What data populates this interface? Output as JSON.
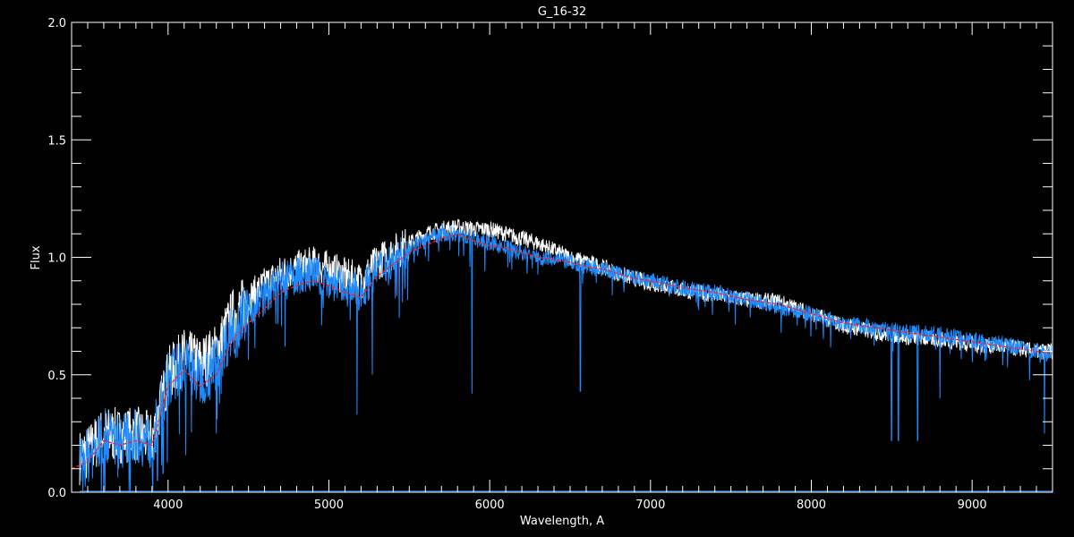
{
  "chart_data": {
    "type": "line",
    "title": "G_16-32",
    "xlabel": "Wavelength, A",
    "ylabel": "Flux",
    "xlim": [
      3400,
      9500
    ],
    "ylim": [
      0.0,
      2.0
    ],
    "xticks": [
      4000,
      5000,
      6000,
      7000,
      8000,
      9000
    ],
    "xtick_labels": [
      "4000",
      "5000",
      "6000",
      "7000",
      "8000",
      "9000"
    ],
    "yticks": [
      0.0,
      0.5,
      1.0,
      1.5,
      2.0
    ],
    "ytick_labels": [
      "0.0",
      "0.5",
      "1.0",
      "1.5",
      "2.0"
    ],
    "grid": false,
    "background": "#000000",
    "series": [
      {
        "color": "#ffffff",
        "x": [
          3450,
          3500,
          3600,
          3700,
          3800,
          3900,
          4000,
          4100,
          4200,
          4300,
          4400,
          4500,
          4600,
          4700,
          4800,
          4900,
          5000,
          5100,
          5200,
          5300,
          5400,
          5500,
          5600,
          5700,
          5800,
          5900,
          6000,
          6100,
          6200,
          6300,
          6400,
          6500,
          6600,
          6700,
          6800,
          6900,
          7000,
          7200,
          7400,
          7600,
          7800,
          8000,
          8200,
          8400,
          8600,
          8800,
          9000,
          9200,
          9400,
          9500
        ],
        "y": [
          0.15,
          0.17,
          0.25,
          0.24,
          0.25,
          0.22,
          0.5,
          0.58,
          0.55,
          0.6,
          0.75,
          0.82,
          0.88,
          0.93,
          0.95,
          0.97,
          0.95,
          0.92,
          0.9,
          0.98,
          1.02,
          1.06,
          1.1,
          1.12,
          1.13,
          1.12,
          1.12,
          1.1,
          1.08,
          1.06,
          1.03,
          1.0,
          0.98,
          0.96,
          0.93,
          0.91,
          0.89,
          0.86,
          0.84,
          0.82,
          0.81,
          0.76,
          0.71,
          0.68,
          0.66,
          0.65,
          0.63,
          0.62,
          0.6,
          0.6
        ]
      },
      {
        "color": "#1e8cff",
        "x": [
          3450,
          3500,
          3600,
          3700,
          3800,
          3900,
          4000,
          4100,
          4200,
          4300,
          4400,
          4500,
          4600,
          4700,
          4800,
          4900,
          5000,
          5100,
          5200,
          5300,
          5400,
          5500,
          5600,
          5700,
          5800,
          5900,
          6000,
          6100,
          6200,
          6300,
          6400,
          6500,
          6600,
          6700,
          6800,
          6900,
          7000,
          7200,
          7400,
          7600,
          7800,
          8000,
          8200,
          8400,
          8600,
          8800,
          9000,
          9200,
          9400,
          9500
        ],
        "y": [
          0.13,
          0.15,
          0.24,
          0.22,
          0.24,
          0.21,
          0.48,
          0.55,
          0.48,
          0.55,
          0.7,
          0.78,
          0.83,
          0.9,
          0.92,
          0.93,
          0.9,
          0.87,
          0.85,
          0.95,
          0.99,
          1.04,
          1.07,
          1.1,
          1.1,
          1.08,
          1.06,
          1.04,
          1.02,
          1.0,
          0.99,
          0.98,
          0.96,
          0.95,
          0.93,
          0.91,
          0.9,
          0.87,
          0.85,
          0.82,
          0.79,
          0.76,
          0.72,
          0.7,
          0.68,
          0.67,
          0.65,
          0.63,
          0.6,
          0.59
        ],
        "absorption_lines": [
          [
            3933,
            0.05
          ],
          [
            3968,
            0.08
          ],
          [
            4300,
            0.25
          ],
          [
            5175,
            0.33
          ],
          [
            5270,
            0.5
          ],
          [
            5890,
            0.42
          ],
          [
            6563,
            0.43
          ],
          [
            8498,
            0.22
          ],
          [
            8542,
            0.22
          ],
          [
            8662,
            0.22
          ],
          [
            8800,
            0.4
          ],
          [
            9450,
            0.25
          ]
        ]
      },
      {
        "color": "#1e8cff",
        "x": [
          3450,
          9500
        ],
        "y": [
          0.005,
          0.005
        ]
      },
      {
        "color": "#ff2020",
        "style": "dashed",
        "x": [
          3400,
          3500,
          3600,
          3700,
          3800,
          3900,
          4000,
          4100,
          4200,
          4300,
          4400,
          4500,
          4600,
          4700,
          4800,
          4900,
          5000,
          5100,
          5200,
          5300,
          5400,
          5500,
          5600,
          5700,
          5800,
          5900,
          6000,
          6100,
          6200,
          6300,
          6400,
          6500,
          6600,
          6700,
          6800,
          6900,
          7000,
          7200,
          7400,
          7600,
          7800,
          8000,
          8200,
          8400,
          8600,
          8800,
          9000,
          9200,
          9400,
          9500
        ],
        "y": [
          0.1,
          0.13,
          0.22,
          0.2,
          0.22,
          0.2,
          0.45,
          0.52,
          0.45,
          0.5,
          0.65,
          0.72,
          0.78,
          0.85,
          0.88,
          0.9,
          0.88,
          0.85,
          0.83,
          0.92,
          0.97,
          1.02,
          1.05,
          1.08,
          1.1,
          1.07,
          1.05,
          1.04,
          1.02,
          1.0,
          0.99,
          0.98,
          0.96,
          0.95,
          0.93,
          0.91,
          0.9,
          0.87,
          0.85,
          0.82,
          0.8,
          0.76,
          0.72,
          0.7,
          0.68,
          0.66,
          0.64,
          0.62,
          0.6,
          0.59
        ]
      }
    ]
  }
}
